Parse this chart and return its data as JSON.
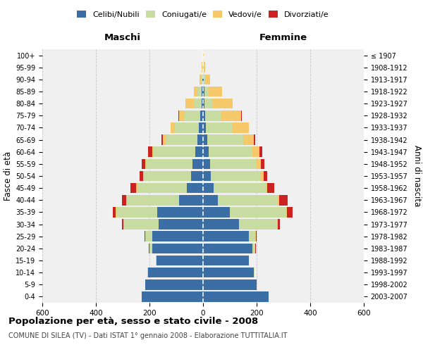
{
  "age_groups": [
    "0-4",
    "5-9",
    "10-14",
    "15-19",
    "20-24",
    "25-29",
    "30-34",
    "35-39",
    "40-44",
    "45-49",
    "50-54",
    "55-59",
    "60-64",
    "65-69",
    "70-74",
    "75-79",
    "80-84",
    "85-89",
    "90-94",
    "95-99",
    "100+"
  ],
  "birth_years": [
    "2003-2007",
    "1998-2002",
    "1993-1997",
    "1988-1992",
    "1983-1987",
    "1978-1982",
    "1973-1977",
    "1968-1972",
    "1963-1967",
    "1958-1962",
    "1953-1957",
    "1948-1952",
    "1943-1947",
    "1938-1942",
    "1933-1937",
    "1928-1932",
    "1923-1927",
    "1918-1922",
    "1913-1917",
    "1908-1912",
    "≤ 1907"
  ],
  "colors": {
    "celibi": "#3a6ea5",
    "coniugati": "#c8dba0",
    "vedovi": "#f5c96a",
    "divorziati": "#cc2222"
  },
  "males": {
    "celibi": [
      230,
      215,
      205,
      175,
      190,
      190,
      165,
      170,
      90,
      60,
      45,
      40,
      30,
      20,
      15,
      10,
      5,
      5,
      2,
      1,
      1
    ],
    "coniugati": [
      0,
      0,
      2,
      2,
      10,
      25,
      130,
      155,
      195,
      185,
      175,
      170,
      155,
      120,
      90,
      60,
      30,
      15,
      5,
      2,
      0
    ],
    "vedovi": [
      0,
      0,
      0,
      0,
      1,
      2,
      2,
      2,
      3,
      5,
      5,
      5,
      5,
      10,
      15,
      20,
      30,
      15,
      5,
      2,
      0
    ],
    "divorziati": [
      0,
      0,
      0,
      0,
      1,
      2,
      5,
      10,
      15,
      20,
      12,
      15,
      15,
      5,
      2,
      2,
      0,
      0,
      0,
      0,
      0
    ]
  },
  "females": {
    "celibi": [
      245,
      200,
      190,
      170,
      185,
      170,
      135,
      100,
      55,
      40,
      30,
      25,
      20,
      15,
      10,
      8,
      5,
      5,
      2,
      1,
      1
    ],
    "coniugati": [
      0,
      0,
      2,
      2,
      10,
      25,
      140,
      210,
      225,
      195,
      185,
      175,
      165,
      135,
      100,
      60,
      30,
      15,
      5,
      2,
      0
    ],
    "vedovi": [
      0,
      0,
      0,
      0,
      1,
      2,
      3,
      3,
      5,
      5,
      10,
      15,
      25,
      40,
      60,
      75,
      75,
      50,
      20,
      5,
      2
    ],
    "divorziati": [
      0,
      0,
      0,
      0,
      2,
      3,
      10,
      20,
      30,
      25,
      15,
      15,
      10,
      5,
      2,
      2,
      0,
      0,
      0,
      0,
      0
    ]
  },
  "title": "Popolazione per età, sesso e stato civile - 2008",
  "subtitle": "COMUNE DI SILEA (TV) - Dati ISTAT 1° gennaio 2008 - Elaborazione TUTTITALIA.IT",
  "xlabel_left": "Maschi",
  "xlabel_right": "Femmine",
  "ylabel_left": "Fasce di età",
  "ylabel_right": "Anni di nascita",
  "xlim": 600,
  "bg_color": "#f0f0f0",
  "grid_color": "#bbbbbb",
  "bar_height": 0.85
}
